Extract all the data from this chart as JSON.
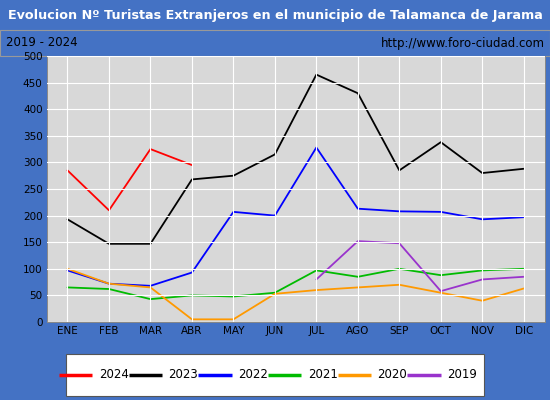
{
  "title": "Evolucion Nº Turistas Extranjeros en el municipio de Talamanca de Jarama",
  "subtitle_left": "2019 - 2024",
  "subtitle_right": "http://www.foro-ciudad.com",
  "title_bg": "#4472c4",
  "title_color": "#ffffff",
  "subtitle_bg": "#f0f0f0",
  "subtitle_color": "#000000",
  "plot_bg": "#d8d8d8",
  "grid_color": "#ffffff",
  "months": [
    "ENE",
    "FEB",
    "MAR",
    "ABR",
    "MAY",
    "JUN",
    "JUL",
    "AGO",
    "SEP",
    "OCT",
    "NOV",
    "DIC"
  ],
  "ylim": [
    0,
    500
  ],
  "yticks": [
    0,
    50,
    100,
    150,
    200,
    250,
    300,
    350,
    400,
    450,
    500
  ],
  "series": {
    "2024": {
      "color": "#ff0000",
      "data": [
        285,
        210,
        325,
        295,
        null,
        null,
        null,
        null,
        null,
        null,
        null,
        null
      ]
    },
    "2023": {
      "color": "#000000",
      "data": [
        193,
        147,
        147,
        268,
        275,
        315,
        465,
        430,
        285,
        338,
        280,
        288
      ]
    },
    "2022": {
      "color": "#0000ff",
      "data": [
        97,
        72,
        68,
        93,
        207,
        200,
        328,
        213,
        208,
        207,
        193,
        197
      ]
    },
    "2021": {
      "color": "#00bb00",
      "data": [
        65,
        62,
        43,
        50,
        48,
        55,
        97,
        85,
        100,
        88,
        97,
        100
      ]
    },
    "2020": {
      "color": "#ff9900",
      "data": [
        100,
        72,
        65,
        5,
        5,
        53,
        60,
        65,
        70,
        55,
        40,
        63
      ]
    },
    "2019": {
      "color": "#9933cc",
      "data": [
        null,
        null,
        null,
        null,
        null,
        null,
        80,
        152,
        148,
        58,
        80,
        85
      ]
    }
  },
  "legend_order": [
    "2024",
    "2023",
    "2022",
    "2021",
    "2020",
    "2019"
  ]
}
